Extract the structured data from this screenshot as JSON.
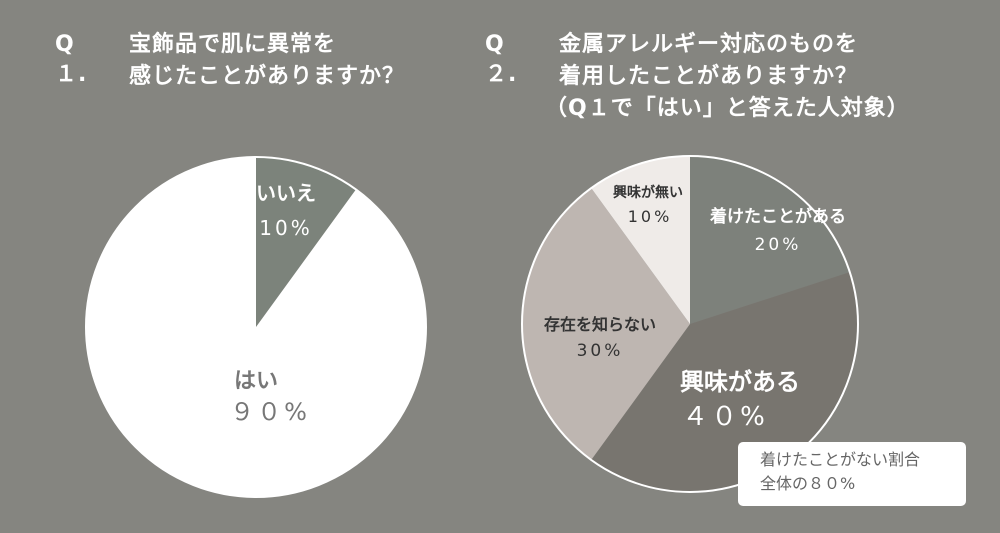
{
  "colors": {
    "background": "#858580"
  },
  "chart_data": [
    {
      "type": "pie",
      "title_prefix": "Q１.",
      "title_lines": [
        "宝飾品で肌に異常を",
        "感じたことがありますか？"
      ],
      "slices": [
        {
          "label": "いいえ",
          "value": 10,
          "value_label": "10%",
          "color": "#7c837b",
          "text_color": "#ffffff"
        },
        {
          "label": "はい",
          "value": 90,
          "value_label": "９０%",
          "color": "#ffffff",
          "text_color": "#777777"
        }
      ]
    },
    {
      "type": "pie",
      "title_prefix": "Q２.",
      "title_lines": [
        "金属アレルギー対応のものを",
        "着用したことがありますか？",
        "（Q１で「はい」と答えた人対象）"
      ],
      "slices": [
        {
          "label": "着けたことがある",
          "value": 20,
          "value_label": "20%",
          "color": "#7d817b",
          "text_color": "#ffffff"
        },
        {
          "label": "興味がある",
          "value": 40,
          "value_label": "４０%",
          "color": "#78756f",
          "text_color": "#ffffff"
        },
        {
          "label": "存在を知らない",
          "value": 30,
          "value_label": "30%",
          "color": "#beb6b1",
          "text_color": "#333333"
        },
        {
          "label": "興味が無い",
          "value": 10,
          "value_label": "10%",
          "color": "#efebe8",
          "text_color": "#333333"
        }
      ],
      "note_lines": [
        "着けたことがない割合",
        "全体の８０%"
      ]
    }
  ]
}
